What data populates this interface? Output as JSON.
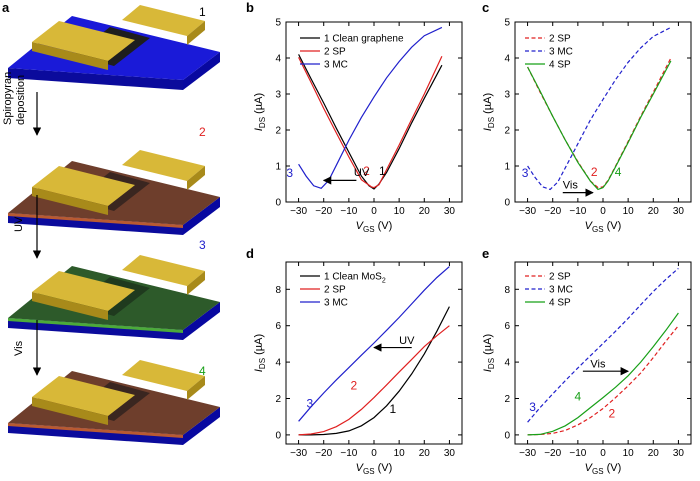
{
  "panel_labels": {
    "a": "a",
    "b": "b",
    "c": "c",
    "d": "d",
    "e": "e"
  },
  "device": {
    "step_numbers": [
      "1",
      "2",
      "3",
      "4"
    ],
    "arrow_labels": [
      "Spiropyran\ndeposition",
      "UV",
      "Vis"
    ],
    "colors": {
      "substrate": "#1515d6",
      "electrode": "#d8b838",
      "channel_clean": "#1e1e1e",
      "film_sp": "#6e3e2c",
      "film_mc": "#2d5a2a"
    }
  },
  "colors": {
    "series_1": "#000000",
    "series_2": "#e02020",
    "series_3": "#2020cc",
    "series_4": "#18a018"
  },
  "chart_data": [
    {
      "id": "b",
      "type": "line",
      "xlabel_main": "V",
      "xlabel_sub": "GS",
      "xlabel_unit": " (V)",
      "ylabel_main": "I",
      "ylabel_sub": "DS",
      "ylabel_unit": " (µA)",
      "xlim": [
        -35,
        35
      ],
      "ylim": [
        0,
        5
      ],
      "xticks": [
        "-30",
        "-20",
        "-10",
        "0",
        "10",
        "20",
        "30"
      ],
      "yticks": [
        "0",
        "1",
        "2",
        "3",
        "4",
        "5"
      ],
      "legend": [
        "1 Clean graphene",
        "2 SP",
        "3 MC"
      ],
      "annotations": {
        "arrow_text": "UV",
        "curve_labels": [
          "3",
          "2",
          "1"
        ]
      },
      "series": [
        {
          "name": "1 Clean graphene",
          "dash": false,
          "x": [
            -30,
            -25,
            -20,
            -15,
            -10,
            -5,
            -2,
            0,
            2,
            5,
            10,
            15,
            20,
            27
          ],
          "y": [
            4.1,
            3.42,
            2.75,
            2.05,
            1.38,
            0.72,
            0.45,
            0.36,
            0.5,
            0.82,
            1.48,
            2.2,
            2.88,
            3.8
          ]
        },
        {
          "name": "2 SP",
          "dash": false,
          "x": [
            -30,
            -25,
            -20,
            -15,
            -10,
            -5,
            -1,
            0,
            2,
            5,
            10,
            15,
            20,
            27
          ],
          "y": [
            4.02,
            3.32,
            2.6,
            1.92,
            1.25,
            0.62,
            0.42,
            0.4,
            0.48,
            0.9,
            1.58,
            2.3,
            3.0,
            4.05
          ]
        },
        {
          "name": "3 MC",
          "dash": false,
          "x": [
            -30,
            -27,
            -24,
            -21,
            -18,
            -15,
            -10,
            -5,
            0,
            5,
            10,
            15,
            20,
            27
          ],
          "y": [
            1.05,
            0.72,
            0.45,
            0.38,
            0.6,
            1.02,
            1.72,
            2.35,
            2.92,
            3.45,
            3.9,
            4.3,
            4.62,
            4.85
          ]
        }
      ]
    },
    {
      "id": "c",
      "type": "line",
      "xlabel_main": "V",
      "xlabel_sub": "GS",
      "xlabel_unit": " (V)",
      "ylabel_main": "I",
      "ylabel_sub": "DS",
      "ylabel_unit": " (µA)",
      "xlim": [
        -35,
        35
      ],
      "ylim": [
        0,
        5
      ],
      "xticks": [
        "-30",
        "-20",
        "-10",
        "0",
        "10",
        "20",
        "30"
      ],
      "yticks": [
        "0",
        "1",
        "2",
        "3",
        "4",
        "5"
      ],
      "legend": [
        "2 SP",
        "3 MC",
        "4 SP"
      ],
      "annotations": {
        "arrow_text": "Vis",
        "curve_labels": [
          "3",
          "2",
          "4"
        ]
      },
      "series": [
        {
          "name": "2 SP",
          "dash": true,
          "x": [
            -30,
            -25,
            -20,
            -15,
            -10,
            -5,
            -2,
            0,
            2,
            5,
            10,
            15,
            20,
            27
          ],
          "y": [
            3.75,
            3.05,
            2.38,
            1.72,
            1.12,
            0.58,
            0.4,
            0.42,
            0.6,
            1.0,
            1.68,
            2.38,
            3.05,
            4.0
          ]
        },
        {
          "name": "3 MC",
          "dash": true,
          "x": [
            -30,
            -27,
            -24,
            -21,
            -18,
            -15,
            -10,
            -5,
            0,
            5,
            10,
            15,
            20,
            27
          ],
          "y": [
            1.0,
            0.68,
            0.42,
            0.35,
            0.55,
            0.95,
            1.62,
            2.28,
            2.85,
            3.4,
            3.88,
            4.28,
            4.6,
            4.85
          ]
        },
        {
          "name": "4 SP",
          "dash": false,
          "x": [
            -30,
            -25,
            -20,
            -15,
            -10,
            -5,
            -2,
            0,
            2,
            5,
            10,
            15,
            20,
            27
          ],
          "y": [
            3.75,
            3.08,
            2.38,
            1.72,
            1.1,
            0.58,
            0.35,
            0.4,
            0.58,
            0.98,
            1.65,
            2.35,
            3.0,
            3.92
          ]
        }
      ]
    },
    {
      "id": "d",
      "type": "line",
      "xlabel_main": "V",
      "xlabel_sub": "GS",
      "xlabel_unit": " (V)",
      "ylabel_main": "I",
      "ylabel_sub": "DS",
      "ylabel_unit": " (µA)",
      "xlim": [
        -35,
        35
      ],
      "ylim": [
        -0.5,
        9.5
      ],
      "xticks": [
        "-30",
        "-20",
        "-10",
        "0",
        "10",
        "20",
        "30"
      ],
      "yticks": [
        "0",
        "2",
        "4",
        "6",
        "8"
      ],
      "legend": [
        "1 Clean MoS",
        "2 SP",
        "3 MC"
      ],
      "legend_sub": "2",
      "annotations": {
        "arrow_text": "UV",
        "curve_labels": [
          "3",
          "2",
          "1"
        ]
      },
      "series": [
        {
          "name": "1 Clean MoS2",
          "dash": false,
          "x": [
            -30,
            -25,
            -20,
            -15,
            -10,
            -5,
            0,
            5,
            10,
            15,
            20,
            25,
            30
          ],
          "y": [
            0.0,
            0.0,
            0.02,
            0.08,
            0.22,
            0.5,
            0.95,
            1.6,
            2.4,
            3.35,
            4.45,
            5.7,
            7.05
          ]
        },
        {
          "name": "2 SP",
          "dash": false,
          "x": [
            -30,
            -25,
            -20,
            -15,
            -10,
            -5,
            0,
            5,
            10,
            15,
            20,
            25,
            30
          ],
          "y": [
            0.0,
            0.05,
            0.18,
            0.45,
            0.85,
            1.4,
            2.05,
            2.75,
            3.45,
            4.15,
            4.85,
            5.45,
            6.0
          ]
        },
        {
          "name": "3 MC",
          "dash": false,
          "x": [
            -30,
            -25,
            -20,
            -15,
            -10,
            -5,
            0,
            5,
            10,
            15,
            20,
            25,
            30
          ],
          "y": [
            0.75,
            1.55,
            2.3,
            3.02,
            3.7,
            4.38,
            5.05,
            5.75,
            6.45,
            7.2,
            7.95,
            8.65,
            9.25
          ]
        }
      ]
    },
    {
      "id": "e",
      "type": "line",
      "xlabel_main": "V",
      "xlabel_sub": "GS",
      "xlabel_unit": " (V)",
      "ylabel_main": "I",
      "ylabel_sub": "DS",
      "ylabel_unit": " (µA)",
      "xlim": [
        -35,
        35
      ],
      "ylim": [
        -0.5,
        9.5
      ],
      "xticks": [
        "-30",
        "-20",
        "-10",
        "0",
        "10",
        "20",
        "30"
      ],
      "yticks": [
        "0",
        "2",
        "4",
        "6",
        "8"
      ],
      "legend": [
        "2 SP",
        "3 MC",
        "4 SP"
      ],
      "annotations": {
        "arrow_text": "Vis",
        "curve_labels": [
          "3",
          "4",
          "2"
        ]
      },
      "series": [
        {
          "name": "2 SP",
          "dash": true,
          "x": [
            -30,
            -25,
            -20,
            -15,
            -10,
            -5,
            0,
            5,
            10,
            15,
            20,
            25,
            30
          ],
          "y": [
            0.0,
            0.02,
            0.08,
            0.25,
            0.55,
            0.95,
            1.45,
            2.05,
            2.7,
            3.4,
            4.25,
            5.15,
            6.0
          ]
        },
        {
          "name": "3 MC",
          "dash": true,
          "x": [
            -30,
            -25,
            -20,
            -15,
            -10,
            -5,
            0,
            5,
            10,
            15,
            20,
            25,
            30
          ],
          "y": [
            0.7,
            1.5,
            2.25,
            2.98,
            3.68,
            4.35,
            5.02,
            5.7,
            6.4,
            7.15,
            7.88,
            8.55,
            9.15
          ]
        },
        {
          "name": "4 SP",
          "dash": false,
          "x": [
            -30,
            -25,
            -20,
            -15,
            -10,
            -5,
            0,
            5,
            10,
            15,
            20,
            25,
            30
          ],
          "y": [
            0.0,
            0.03,
            0.2,
            0.5,
            0.95,
            1.5,
            2.05,
            2.62,
            3.25,
            4.0,
            4.85,
            5.75,
            6.7
          ]
        }
      ]
    }
  ]
}
